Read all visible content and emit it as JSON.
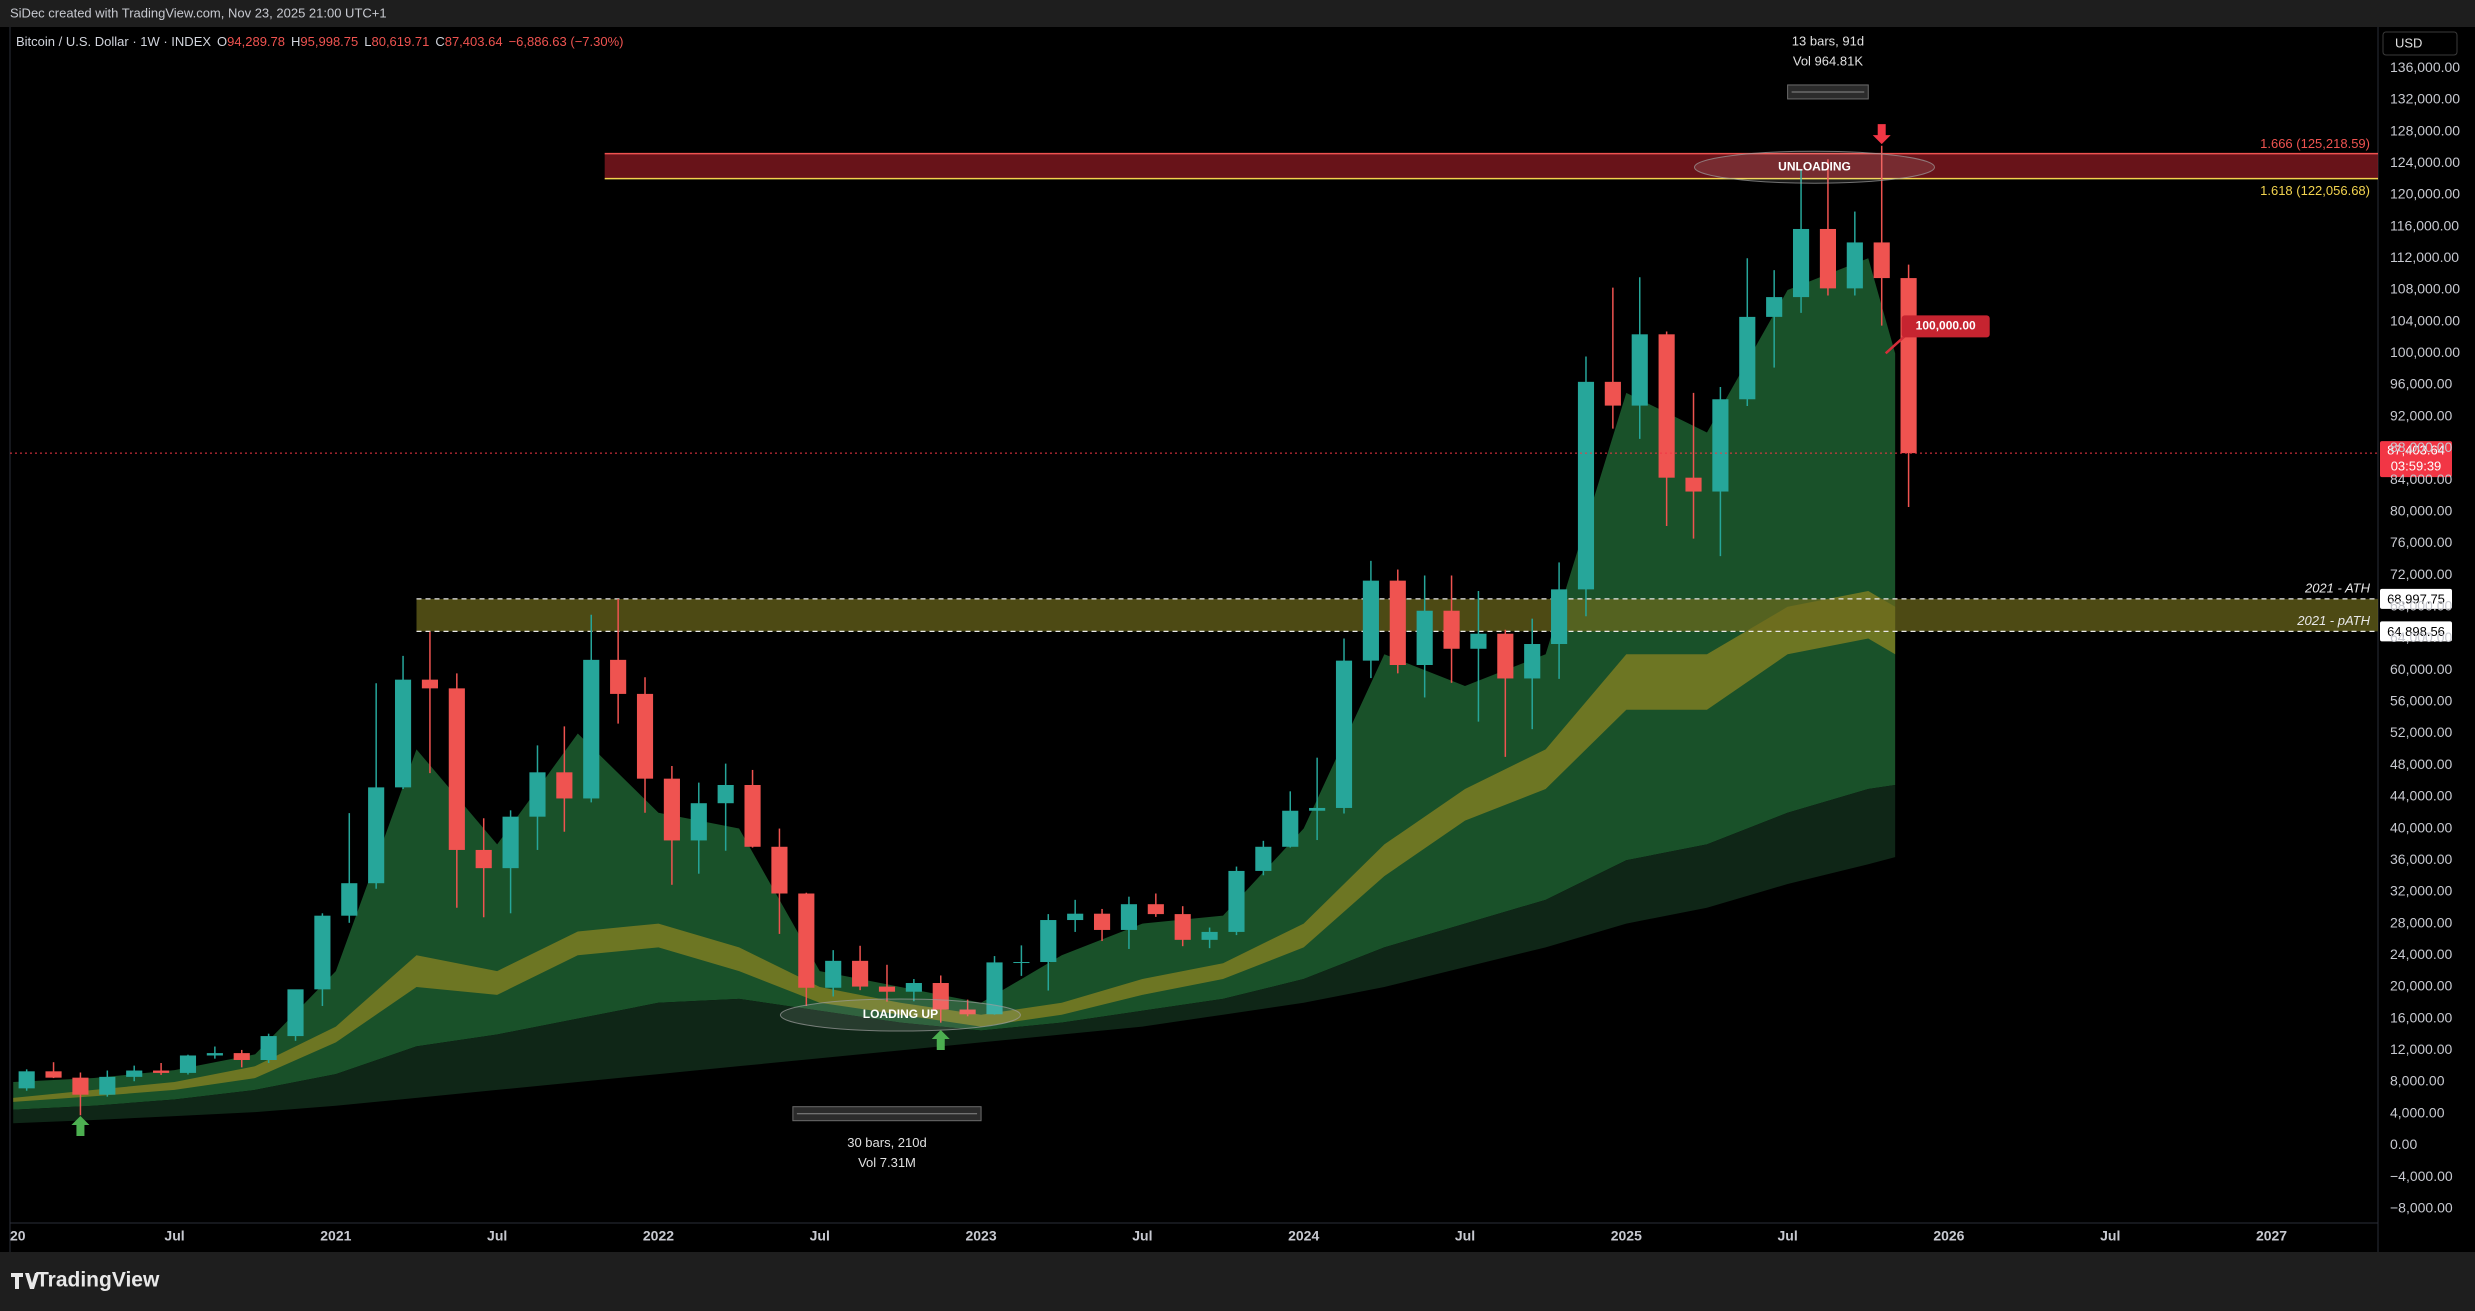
{
  "header": {
    "credit": "SiDec created with TradingView.com, Nov 23, 2025 21:00 UTC+1"
  },
  "footer": {
    "logo": "TradingView"
  },
  "chart_data": {
    "type": "candlestick",
    "symbol": "Bitcoin / U.S. Dollar · 1W · INDEX",
    "ohlc_legend": [
      {
        "label": "O",
        "value": "94,289.78"
      },
      {
        "label": "H",
        "value": "95,998.75"
      },
      {
        "label": "L",
        "value": "80,619.71"
      },
      {
        "label": "C",
        "value": "87,403.64"
      }
    ],
    "change": "−6,886.63 (−7.30%)",
    "currency": "USD",
    "up_color": "#26a69a",
    "down_color": "#ef5350",
    "x": [
      "2020-01",
      "2020-02",
      "2020-03",
      "2020-04",
      "2020-05",
      "2020-06",
      "2020-07",
      "2020-08",
      "2020-09",
      "2020-10",
      "2020-11",
      "2020-12",
      "2021-01",
      "2021-02",
      "2021-03",
      "2021-04",
      "2021-05",
      "2021-06",
      "2021-07",
      "2021-08",
      "2021-09",
      "2021-10",
      "2021-11",
      "2021-12",
      "2022-01",
      "2022-02",
      "2022-03",
      "2022-04",
      "2022-05",
      "2022-06",
      "2022-07",
      "2022-08",
      "2022-09",
      "2022-10",
      "2022-11",
      "2022-12",
      "2023-01",
      "2023-02",
      "2023-03",
      "2023-04",
      "2023-05",
      "2023-06",
      "2023-07",
      "2023-08",
      "2023-09",
      "2023-10",
      "2023-11",
      "2023-12",
      "2024-01",
      "2024-02",
      "2024-03",
      "2024-04",
      "2024-05",
      "2024-06",
      "2024-07",
      "2024-08",
      "2024-09",
      "2024-10",
      "2024-11",
      "2024-12",
      "2025-01",
      "2025-02",
      "2025-03",
      "2025-04",
      "2025-05",
      "2025-06",
      "2025-07",
      "2025-08",
      "2025-09",
      "2025-10",
      "2025-11"
    ],
    "open": [
      7200,
      9350,
      8550,
      6400,
      8650,
      9450,
      9150,
      11350,
      11650,
      10780,
      13800,
      19700,
      29000,
      33100,
      45200,
      58800,
      57700,
      37300,
      35000,
      41500,
      47100,
      43800,
      61300,
      57000,
      46300,
      38500,
      43200,
      45500,
      37700,
      31800,
      19900,
      23300,
      20050,
      19400,
      20500,
      17150,
      16550,
      23100,
      23150,
      28450,
      29250,
      27200,
      30450,
      29200,
      25950,
      26950,
      34650,
      37700,
      42250,
      42600,
      61200,
      71300,
      60650,
      67500,
      62700,
      64600,
      58950,
      63300,
      70200,
      96400,
      93400,
      102400,
      84300,
      82550,
      94200,
      104600,
      107100,
      115700,
      108200,
      114000,
      109500
    ],
    "high": [
      9600,
      10500,
      9200,
      9450,
      10070,
      10400,
      11450,
      12480,
      12050,
      14100,
      19500,
      29300,
      41950,
      58350,
      61800,
      64850,
      59600,
      41300,
      42300,
      50500,
      52900,
      67000,
      69000,
      59100,
      47900,
      45800,
      48200,
      47400,
      40000,
      31900,
      24650,
      25200,
      22800,
      21000,
      21450,
      18400,
      23900,
      25250,
      29200,
      31000,
      29850,
      31400,
      31800,
      30200,
      27500,
      35200,
      38450,
      44700,
      48950,
      64000,
      73800,
      72700,
      71950,
      71950,
      70000,
      65100,
      66500,
      73600,
      99600,
      108300,
      109600,
      102750,
      95000,
      95750,
      112000,
      110500,
      123200,
      124500,
      117900,
      126200,
      111200
    ],
    "low": [
      6900,
      8500,
      3800,
      6150,
      8100,
      8900,
      8950,
      10950,
      9850,
      10400,
      13200,
      17600,
      28100,
      32400,
      45000,
      47000,
      30000,
      28800,
      29300,
      37300,
      39600,
      43300,
      53250,
      42000,
      32900,
      34300,
      37200,
      37600,
      26700,
      17600,
      18800,
      19600,
      18150,
      18200,
      15500,
      16300,
      16500,
      21400,
      19550,
      26950,
      25800,
      24800,
      28850,
      25150,
      24900,
      26550,
      34100,
      37600,
      38550,
      41900,
      59000,
      59600,
      56550,
      58400,
      53500,
      49050,
      52550,
      58900,
      66800,
      90500,
      89200,
      78200,
      76600,
      74400,
      93350,
      98200,
      105100,
      107300,
      107300,
      103500,
      80600
    ],
    "close": [
      9350,
      8550,
      6400,
      8650,
      9450,
      9150,
      11350,
      11650,
      10780,
      13800,
      19700,
      29000,
      33100,
      45200,
      58800,
      57700,
      37300,
      35000,
      41500,
      47100,
      43800,
      61300,
      57000,
      46300,
      38500,
      43200,
      45500,
      37700,
      31800,
      19900,
      23300,
      20050,
      19400,
      20500,
      17150,
      16550,
      23100,
      23150,
      28450,
      29250,
      27200,
      30450,
      29200,
      25950,
      26950,
      34650,
      37700,
      42250,
      42600,
      61200,
      71300,
      60650,
      67500,
      62700,
      64600,
      58950,
      63300,
      70200,
      96400,
      93400,
      102400,
      84300,
      82550,
      94200,
      104600,
      107100,
      115700,
      108200,
      114000,
      109500,
      87400
    ],
    "bands_x": [
      "2020-01",
      "2020-04",
      "2020-07",
      "2020-10",
      "2021-01",
      "2021-04",
      "2021-07",
      "2021-10",
      "2022-01",
      "2022-04",
      "2022-07",
      "2022-10",
      "2023-01",
      "2023-04",
      "2023-07",
      "2023-10",
      "2024-01",
      "2024-04",
      "2024-07",
      "2024-10",
      "2025-01",
      "2025-04",
      "2025-07",
      "2025-10",
      "2025-11"
    ],
    "bands": [
      {
        "color": "#1c5a2e",
        "upper": [
          8000,
          8500,
          9500,
          11500,
          22000,
          50000,
          38000,
          52000,
          42000,
          40000,
          22000,
          20000,
          18000,
          24000,
          28000,
          29000,
          40000,
          62000,
          58000,
          62000,
          95000,
          90000,
          108000,
          112000,
          100000
        ],
        "lower": [
          4500,
          5000,
          5800,
          7000,
          9000,
          12500,
          14000,
          16000,
          18000,
          18500,
          17000,
          15500,
          14500,
          15500,
          17000,
          18500,
          21000,
          25000,
          28000,
          31000,
          36000,
          38000,
          42000,
          45000,
          45500
        ]
      },
      {
        "color": "#7c7d22",
        "upper": [
          6000,
          7000,
          8000,
          10000,
          15000,
          24000,
          22000,
          27000,
          28000,
          25000,
          20000,
          18000,
          16500,
          18000,
          21000,
          23000,
          28000,
          38000,
          45000,
          50000,
          62000,
          62000,
          68000,
          70000,
          68000
        ],
        "lower": [
          5500,
          6200,
          7000,
          8500,
          13000,
          20000,
          19000,
          24000,
          25000,
          22000,
          18000,
          16500,
          15000,
          16500,
          19000,
          21000,
          25000,
          34000,
          41000,
          45000,
          55000,
          55000,
          62000,
          64000,
          62000
        ]
      },
      {
        "color": "#112a1a",
        "upper": [
          4500,
          5000,
          5800,
          7000,
          9000,
          12500,
          14000,
          16000,
          18000,
          18500,
          17000,
          15500,
          14500,
          15500,
          17000,
          18500,
          21000,
          25000,
          28000,
          31000,
          36000,
          38000,
          42000,
          45000,
          45500
        ],
        "lower": [
          2800,
          3200,
          3700,
          4200,
          5000,
          6000,
          7000,
          8000,
          9000,
          10000,
          11000,
          12000,
          13000,
          14000,
          15000,
          16500,
          18000,
          20000,
          22500,
          25000,
          28000,
          30000,
          33000,
          35500,
          36400
        ]
      }
    ],
    "fib_zone": {
      "start": "2021-11",
      "color": "#8b1a22",
      "levels": [
        {
          "value": 125218.59,
          "label": "1.666 (125,218.59)",
          "color": "#ef5350"
        },
        {
          "value": 122056.68,
          "label": "1.618 (122,056.68)",
          "color": "#f2d34f"
        }
      ]
    },
    "ath_zone": {
      "start": "2021-04",
      "color": "#6d6a1c",
      "levels": [
        {
          "value": 68997.75,
          "label": "68,997.75",
          "name": "2021 - ATH"
        },
        {
          "value": 64898.56,
          "label": "64,898.56",
          "name": "2021 - pATH"
        }
      ]
    },
    "last_price": {
      "value": 87403.64,
      "label": "87,403.64",
      "countdown": "03:59:39",
      "color": "#f23645"
    },
    "callout": {
      "date": "2025-10",
      "value": 100000,
      "label": "100,000.00"
    },
    "ellipses": [
      {
        "date": "2025-08",
        "value": 123500,
        "label": "UNLOADING"
      },
      {
        "date": "2022-10",
        "value": 16460,
        "label": "LOADING UP"
      }
    ],
    "measures": [
      {
        "start": "2025-07",
        "end": "2025-10",
        "value": 133000,
        "bars_label": "13 bars, 91d",
        "vol_label": "Vol 964.81K",
        "side": "above"
      },
      {
        "start": "2022-06",
        "end": "2023-01",
        "value": 4000,
        "bars_label": "30 bars, 210d",
        "vol_label": "Vol 7.31M",
        "side": "below"
      }
    ],
    "markers": [
      {
        "date": "2020-03",
        "value": 2320,
        "dir": "up",
        "color": "#4caf50"
      },
      {
        "date": "2022-11",
        "value": 13180,
        "dir": "up",
        "color": "#4caf50"
      },
      {
        "date": "2025-10",
        "value": 127800,
        "dir": "down",
        "color": "#f23645"
      }
    ],
    "xlim": [
      2019.99,
      2027.33
    ],
    "xticks": [
      {
        "value": 2020,
        "label": "20"
      },
      {
        "value": 2020.5,
        "label": "Jul"
      },
      2021,
      {
        "value": 2021.5,
        "label": "Jul"
      },
      2022,
      {
        "value": 2022.5,
        "label": "Jul"
      },
      2023,
      {
        "value": 2023.5,
        "label": "Jul"
      },
      2024,
      {
        "value": 2024.5,
        "label": "Jul"
      },
      2025,
      {
        "value": 2025.5,
        "label": "Jul"
      },
      2026,
      {
        "value": 2026.5,
        "label": "Jul"
      },
      2027
    ],
    "ylim": [
      -9800,
      141200
    ],
    "yticks": [
      {
        "value": 136000,
        "label": "136,000.00"
      },
      {
        "value": 132000,
        "label": "132,000.00"
      },
      {
        "value": 128000,
        "label": "128,000.00"
      },
      {
        "value": 124000,
        "label": "124,000.00"
      },
      {
        "value": 120000,
        "label": "120,000.00"
      },
      {
        "value": 116000,
        "label": "116,000.00"
      },
      {
        "value": 112000,
        "label": "112,000.00"
      },
      {
        "value": 108000,
        "label": "108,000.00"
      },
      {
        "value": 104000,
        "label": "104,000.00"
      },
      {
        "value": 100000,
        "label": "100,000.00"
      },
      {
        "value": 96000,
        "label": "96,000.00"
      },
      {
        "value": 92000,
        "label": "92,000.00"
      },
      {
        "value": 88000,
        "label": "88,000.00"
      },
      {
        "value": 84000,
        "label": "84,000.00"
      },
      {
        "value": 80000,
        "label": "80,000.00"
      },
      {
        "value": 76000,
        "label": "76,000.00"
      },
      {
        "value": 72000,
        "label": "72,000.00"
      },
      {
        "value": 68000,
        "label": "68,000.00"
      },
      {
        "value": 64000,
        "label": "64,000.00"
      },
      {
        "value": 60000,
        "label": "60,000.00"
      },
      {
        "value": 56000,
        "label": "56,000.00"
      },
      {
        "value": 52000,
        "label": "52,000.00"
      },
      {
        "value": 48000,
        "label": "48,000.00"
      },
      {
        "value": 44000,
        "label": "44,000.00"
      },
      {
        "value": 40000,
        "label": "40,000.00"
      },
      {
        "value": 36000,
        "label": "36,000.00"
      },
      {
        "value": 32000,
        "label": "32,000.00"
      },
      {
        "value": 28000,
        "label": "28,000.00"
      },
      {
        "value": 24000,
        "label": "24,000.00"
      },
      {
        "value": 20000,
        "label": "20,000.00"
      },
      {
        "value": 16000,
        "label": "16,000.00"
      },
      {
        "value": 12000,
        "label": "12,000.00"
      },
      {
        "value": 8000,
        "label": "8,000.00"
      },
      {
        "value": 4000,
        "label": "4,000.00"
      },
      {
        "value": 0,
        "label": "0.00"
      },
      {
        "value": -4000,
        "label": "−4,000.00"
      },
      {
        "value": -8000,
        "label": "−8,000.00"
      }
    ]
  }
}
